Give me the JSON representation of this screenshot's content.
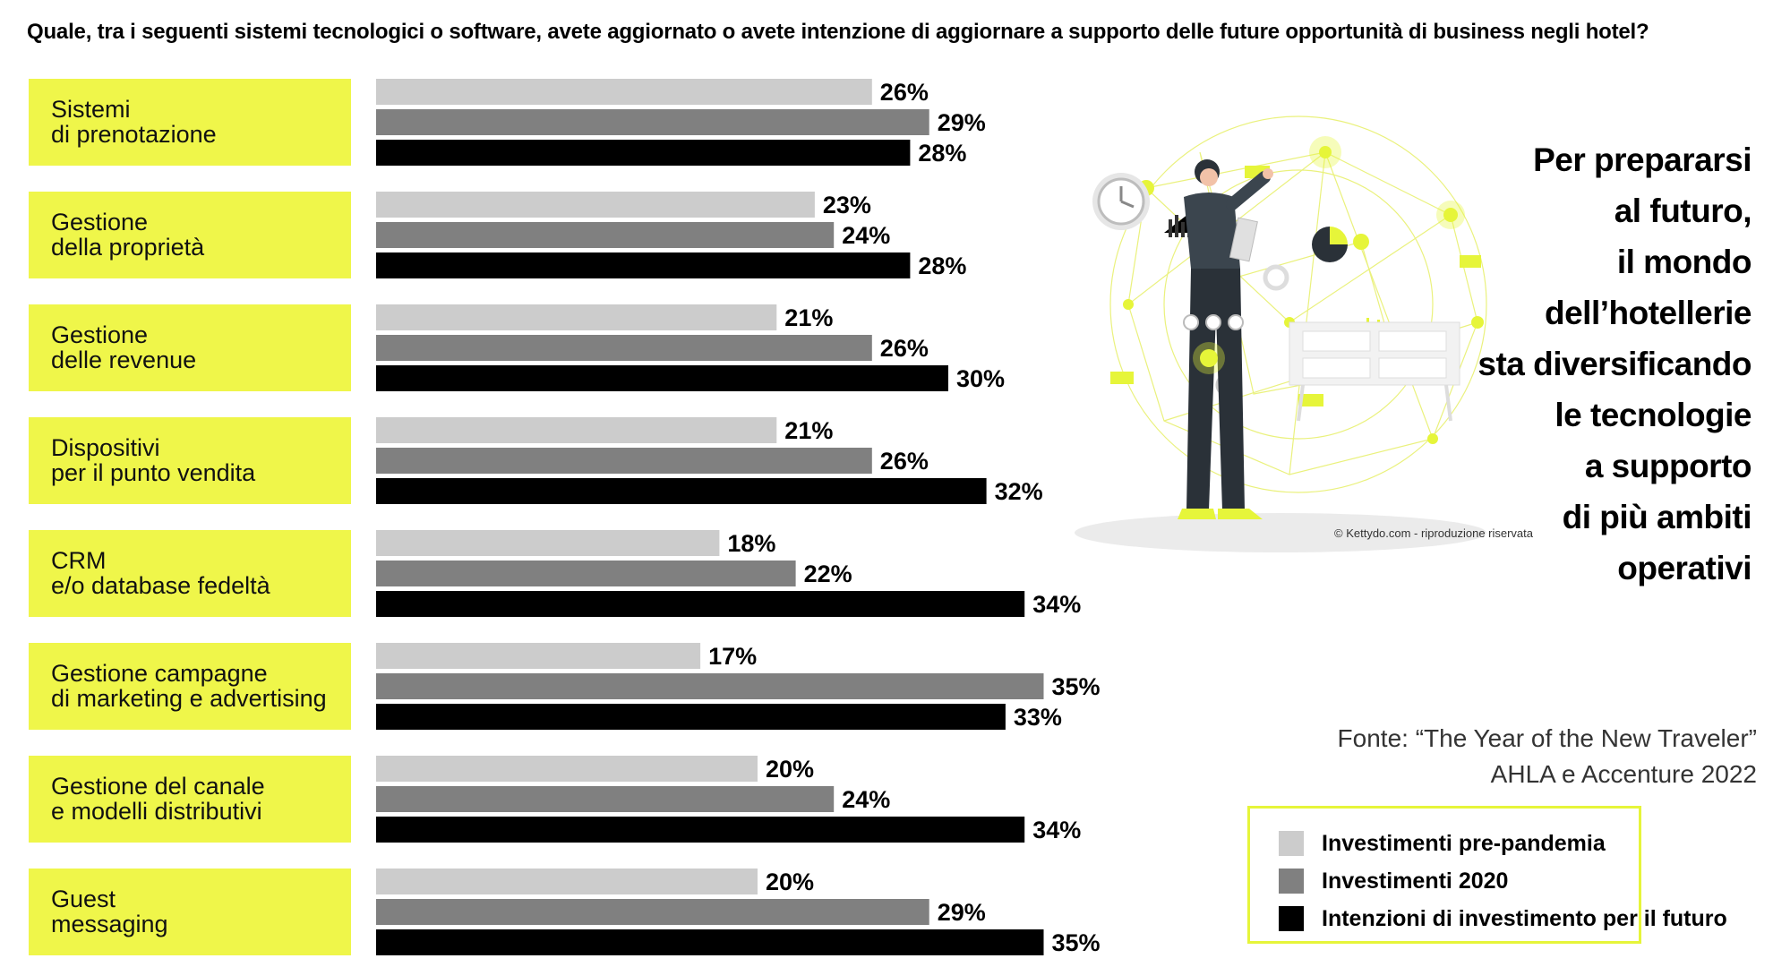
{
  "question": "Quale, tra i seguenti sistemi tecnologici o software, avete aggiornato o avete intenzione di aggiornare a supporto delle future opportunità di business negli hotel?",
  "headline_lines": [
    "Per prepararsi",
    "al futuro,",
    "il mondo",
    "dell’hotellerie",
    "sta diversificando",
    "le tecnologie",
    "a supporto",
    "di più ambiti",
    "operativi"
  ],
  "source_lines": [
    "Fonte: “The Year of the New Traveler”",
    "AHLA e Accenture 2022"
  ],
  "credit": "© Kettydo.com - riproduzione riservata",
  "legend": [
    {
      "label": "Investimenti pre-pandemia",
      "color": "#cccccc"
    },
    {
      "label": "Investimenti 2020",
      "color": "#808080"
    },
    {
      "label": "Intenzioni di investimento per il futuro",
      "color": "#000000"
    }
  ],
  "chart_data": {
    "type": "bar",
    "orientation": "horizontal",
    "unit": "%",
    "categories": [
      [
        "Sistemi",
        "di prenotazione"
      ],
      [
        "Gestione",
        "della proprietà"
      ],
      [
        "Gestione",
        "delle revenue"
      ],
      [
        "Dispositivi",
        "per il punto vendita"
      ],
      [
        "CRM",
        "e/o database fedeltà"
      ],
      [
        "Gestione campagne",
        "di marketing e advertising"
      ],
      [
        "Gestione del canale",
        "e modelli distributivi"
      ],
      [
        "Guest",
        "messaging"
      ]
    ],
    "series": [
      {
        "name": "Investimenti pre-pandemia",
        "color": "#cccccc",
        "values": [
          26,
          23,
          21,
          21,
          18,
          17,
          20,
          20
        ]
      },
      {
        "name": "Investimenti 2020",
        "color": "#808080",
        "values": [
          29,
          24,
          26,
          26,
          22,
          35,
          24,
          29
        ]
      },
      {
        "name": "Intenzioni di investimento per il futuro",
        "color": "#000000",
        "values": [
          28,
          28,
          30,
          32,
          34,
          33,
          34,
          35
        ]
      }
    ],
    "label_color": "#eff64a",
    "xlim": [
      0,
      35
    ]
  }
}
